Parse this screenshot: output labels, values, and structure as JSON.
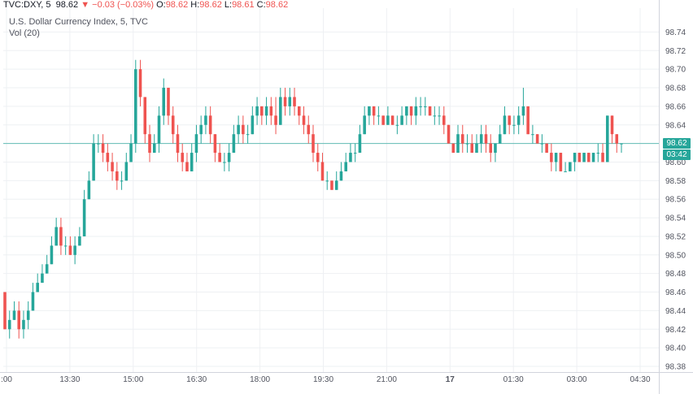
{
  "header": {
    "symbol": "TVC:DXY, 5",
    "last": "98.62",
    "change": "▼ −0.03 (−0.03%)",
    "o_label": "O:",
    "o_value": "98.62",
    "h_label": "H:",
    "h_value": "98.62",
    "l_label": "L:",
    "l_value": "98.61",
    "c_label": "C:",
    "c_value": "98.62"
  },
  "legend": {
    "title": "U.S. Dollar Currency Index, 5, TVC",
    "volume": "Vol (20)"
  },
  "badges": {
    "price": "98.62",
    "countdown": "03:42"
  },
  "colors": {
    "up": "#26a69a",
    "down": "#ef5350",
    "last_line": "#26a69a",
    "grid": "#eef0f3"
  },
  "chart_data": {
    "type": "candlestick",
    "ylim": [
      98.38,
      98.75
    ],
    "y_ticks": [
      98.38,
      98.4,
      98.42,
      98.44,
      98.46,
      98.48,
      98.5,
      98.52,
      98.54,
      98.56,
      98.58,
      98.6,
      98.62,
      98.64,
      98.66,
      98.68,
      98.7,
      98.72,
      98.74
    ],
    "x_ticks": [
      ":00",
      "13:30",
      "15:00",
      "16:30",
      "18:00",
      "19:30",
      "21:00",
      "17",
      "01:30",
      "03:00",
      "04:30"
    ],
    "last_price": 98.62,
    "candles": [
      [
        98.46,
        98.46,
        98.42,
        98.42
      ],
      [
        98.42,
        98.44,
        98.41,
        98.43
      ],
      [
        98.43,
        98.45,
        98.43,
        98.44
      ],
      [
        98.44,
        98.45,
        98.41,
        98.42
      ],
      [
        98.42,
        98.44,
        98.41,
        98.43
      ],
      [
        98.43,
        98.45,
        98.42,
        98.44
      ],
      [
        98.44,
        98.47,
        98.44,
        98.46
      ],
      [
        98.46,
        98.48,
        98.46,
        98.47
      ],
      [
        98.47,
        98.49,
        98.47,
        98.48
      ],
      [
        98.48,
        98.5,
        98.48,
        98.49
      ],
      [
        98.49,
        98.52,
        98.49,
        98.51
      ],
      [
        98.51,
        98.54,
        98.51,
        98.53
      ],
      [
        98.53,
        98.54,
        98.5,
        98.51
      ],
      [
        98.51,
        98.52,
        98.5,
        98.51
      ],
      [
        98.51,
        98.52,
        98.5,
        98.5
      ],
      [
        98.5,
        98.52,
        98.49,
        98.51
      ],
      [
        98.51,
        98.53,
        98.51,
        98.52
      ],
      [
        98.52,
        98.57,
        98.52,
        98.56
      ],
      [
        98.56,
        98.59,
        98.56,
        98.58
      ],
      [
        98.58,
        98.63,
        98.58,
        98.62
      ],
      [
        98.62,
        98.63,
        98.61,
        98.62
      ],
      [
        98.62,
        98.63,
        98.6,
        98.61
      ],
      [
        98.61,
        98.62,
        98.59,
        98.6
      ],
      [
        98.6,
        98.61,
        98.58,
        98.59
      ],
      [
        98.59,
        98.6,
        98.57,
        98.58
      ],
      [
        98.58,
        98.59,
        98.57,
        98.58
      ],
      [
        98.58,
        98.61,
        98.58,
        98.6
      ],
      [
        98.6,
        98.63,
        98.6,
        98.62
      ],
      [
        98.62,
        98.71,
        98.61,
        98.7
      ],
      [
        98.7,
        98.71,
        98.66,
        98.67
      ],
      [
        98.67,
        98.67,
        98.62,
        98.63
      ],
      [
        98.63,
        98.64,
        98.6,
        98.61
      ],
      [
        98.61,
        98.63,
        98.61,
        98.62
      ],
      [
        98.62,
        98.66,
        98.61,
        98.65
      ],
      [
        98.65,
        98.69,
        98.64,
        98.68
      ],
      [
        98.68,
        98.68,
        98.64,
        98.65
      ],
      [
        98.65,
        98.66,
        98.62,
        98.63
      ],
      [
        98.63,
        98.64,
        98.6,
        98.61
      ],
      [
        98.61,
        98.62,
        98.59,
        98.6
      ],
      [
        98.6,
        98.61,
        98.59,
        98.59
      ],
      [
        98.59,
        98.62,
        98.59,
        98.61
      ],
      [
        98.61,
        98.64,
        98.6,
        98.63
      ],
      [
        98.63,
        98.65,
        98.62,
        98.64
      ],
      [
        98.64,
        98.66,
        98.63,
        98.65
      ],
      [
        98.65,
        98.66,
        98.62,
        98.63
      ],
      [
        98.63,
        98.63,
        98.6,
        98.61
      ],
      [
        98.61,
        98.62,
        98.6,
        98.6
      ],
      [
        98.6,
        98.61,
        98.59,
        98.6
      ],
      [
        98.6,
        98.62,
        98.59,
        98.61
      ],
      [
        98.61,
        98.64,
        98.61,
        98.63
      ],
      [
        98.63,
        98.65,
        98.62,
        98.64
      ],
      [
        98.64,
        98.65,
        98.62,
        98.63
      ],
      [
        98.63,
        98.64,
        98.62,
        98.63
      ],
      [
        98.63,
        98.66,
        98.63,
        98.65
      ],
      [
        98.65,
        98.67,
        98.64,
        98.66
      ],
      [
        98.66,
        98.66,
        98.64,
        98.65
      ],
      [
        98.65,
        98.67,
        98.64,
        98.66
      ],
      [
        98.66,
        98.67,
        98.64,
        98.65
      ],
      [
        98.65,
        98.67,
        98.63,
        98.64
      ],
      [
        98.64,
        98.68,
        98.64,
        98.67
      ],
      [
        98.67,
        98.68,
        98.65,
        98.66
      ],
      [
        98.66,
        98.68,
        98.65,
        98.67
      ],
      [
        98.67,
        98.68,
        98.65,
        98.66
      ],
      [
        98.66,
        98.66,
        98.64,
        98.65
      ],
      [
        98.65,
        98.66,
        98.63,
        98.64
      ],
      [
        98.64,
        98.65,
        98.62,
        98.63
      ],
      [
        98.63,
        98.64,
        98.6,
        98.61
      ],
      [
        98.61,
        98.62,
        98.59,
        98.6
      ],
      [
        98.6,
        98.61,
        98.58,
        98.58
      ],
      [
        98.58,
        98.59,
        98.57,
        98.58
      ],
      [
        98.58,
        98.58,
        98.57,
        98.57
      ],
      [
        98.57,
        98.59,
        98.57,
        98.58
      ],
      [
        98.58,
        98.6,
        98.58,
        98.59
      ],
      [
        98.59,
        98.61,
        98.59,
        98.6
      ],
      [
        98.6,
        98.62,
        98.6,
        98.61
      ],
      [
        98.61,
        98.62,
        98.6,
        98.61
      ],
      [
        98.61,
        98.64,
        98.61,
        98.63
      ],
      [
        98.63,
        98.66,
        98.63,
        98.65
      ],
      [
        98.65,
        98.66,
        98.64,
        98.66
      ],
      [
        98.66,
        98.66,
        98.64,
        98.65
      ],
      [
        98.65,
        98.66,
        98.64,
        98.65
      ],
      [
        98.65,
        98.65,
        98.64,
        98.64
      ],
      [
        98.64,
        98.66,
        98.64,
        98.65
      ],
      [
        98.65,
        98.65,
        98.64,
        98.64
      ],
      [
        98.64,
        98.65,
        98.63,
        98.64
      ],
      [
        98.64,
        98.66,
        98.64,
        98.65
      ],
      [
        98.65,
        98.66,
        98.64,
        98.66
      ],
      [
        98.66,
        98.66,
        98.64,
        98.65
      ],
      [
        98.65,
        98.67,
        98.64,
        98.66
      ],
      [
        98.66,
        98.67,
        98.65,
        98.66
      ],
      [
        98.66,
        98.67,
        98.65,
        98.66
      ],
      [
        98.66,
        98.66,
        98.65,
        98.65
      ],
      [
        98.65,
        98.66,
        98.64,
        98.65
      ],
      [
        98.65,
        98.66,
        98.64,
        98.65
      ],
      [
        98.65,
        98.66,
        98.63,
        98.64
      ],
      [
        98.64,
        98.64,
        98.62,
        98.62
      ],
      [
        98.62,
        98.62,
        98.61,
        98.61
      ],
      [
        98.61,
        98.64,
        98.61,
        98.63
      ],
      [
        98.63,
        98.64,
        98.61,
        98.62
      ],
      [
        98.62,
        98.63,
        98.61,
        98.62
      ],
      [
        98.62,
        98.63,
        98.61,
        98.61
      ],
      [
        98.61,
        98.63,
        98.61,
        98.62
      ],
      [
        98.62,
        98.64,
        98.61,
        98.63
      ],
      [
        98.63,
        98.64,
        98.61,
        98.62
      ],
      [
        98.62,
        98.63,
        98.6,
        98.61
      ],
      [
        98.61,
        98.62,
        98.6,
        98.62
      ],
      [
        98.62,
        98.64,
        98.62,
        98.63
      ],
      [
        98.63,
        98.66,
        98.63,
        98.65
      ],
      [
        98.65,
        98.65,
        98.63,
        98.64
      ],
      [
        98.64,
        98.65,
        98.63,
        98.64
      ],
      [
        98.64,
        98.66,
        98.63,
        98.65
      ],
      [
        98.65,
        98.68,
        98.64,
        98.66
      ],
      [
        98.66,
        98.66,
        98.63,
        98.63
      ],
      [
        98.63,
        98.64,
        98.62,
        98.63
      ],
      [
        98.63,
        98.63,
        98.62,
        98.62
      ],
      [
        98.62,
        98.63,
        98.61,
        98.62
      ],
      [
        98.62,
        98.62,
        98.61,
        98.61
      ],
      [
        98.61,
        98.62,
        98.59,
        98.6
      ],
      [
        98.6,
        98.61,
        98.59,
        98.61
      ],
      [
        98.61,
        98.61,
        98.59,
        98.59
      ],
      [
        98.59,
        98.6,
        98.59,
        98.59
      ],
      [
        98.59,
        98.6,
        98.59,
        98.6
      ],
      [
        98.6,
        98.61,
        98.59,
        98.61
      ],
      [
        98.61,
        98.61,
        98.6,
        98.6
      ],
      [
        98.6,
        98.61,
        98.6,
        98.61
      ],
      [
        98.61,
        98.61,
        98.6,
        98.6
      ],
      [
        98.6,
        98.61,
        98.6,
        98.61
      ],
      [
        98.61,
        98.62,
        98.6,
        98.61
      ],
      [
        98.61,
        98.62,
        98.6,
        98.6
      ],
      [
        98.6,
        98.65,
        98.6,
        98.65
      ],
      [
        98.65,
        98.65,
        98.62,
        98.63
      ],
      [
        98.63,
        98.63,
        98.61,
        98.62
      ],
      [
        98.62,
        98.62,
        98.61,
        98.62
      ]
    ]
  }
}
